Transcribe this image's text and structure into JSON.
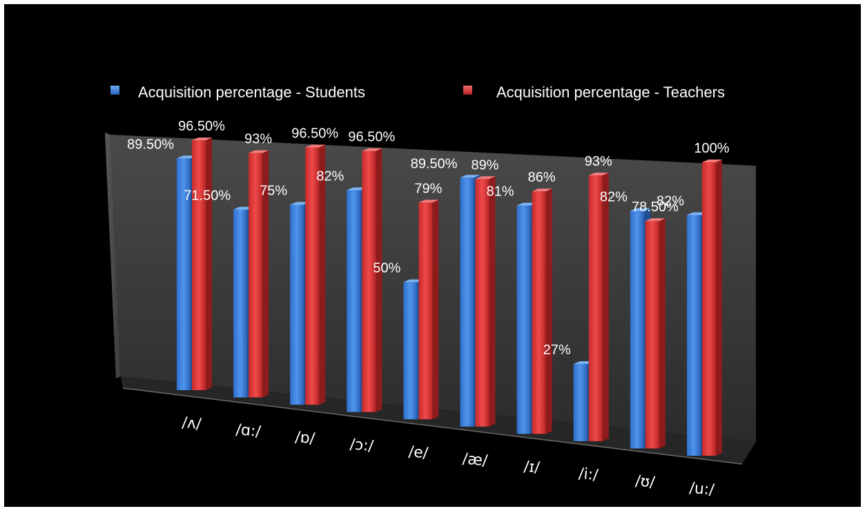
{
  "chart_data": {
    "type": "bar",
    "title": "",
    "xlabel": "",
    "ylabel": "",
    "ylim": [
      0,
      100
    ],
    "grid": false,
    "legend_position": "top",
    "categories": [
      "/ʌ/",
      "/ɑ:/",
      "/ɒ/",
      "/ɔ:/",
      "/e/",
      "/æ/",
      "/ɪ/",
      "/i:/",
      "/ʊ/",
      "/u:/"
    ],
    "series": [
      {
        "name": "Acquisition percentage - Students",
        "color": "#3d7fd9",
        "values": [
          89.5,
          71.5,
          75,
          82,
          50,
          89.5,
          81,
          27,
          82,
          82
        ],
        "labels": [
          "89.50%",
          "71.50%",
          "75%",
          "82%",
          "50%",
          "89.50%",
          "81%",
          "27%",
          "82%",
          "82%"
        ]
      },
      {
        "name": "Acquisition percentage - Teachers",
        "color": "#d93535",
        "values": [
          96.5,
          93,
          96.5,
          96.5,
          79,
          89,
          86,
          93,
          78.5,
          100
        ],
        "labels": [
          "96.50%",
          "93%",
          "96.50%",
          "96.50%",
          "79%",
          "89%",
          "86%",
          "93%",
          "78.50%",
          "100%"
        ]
      }
    ]
  }
}
